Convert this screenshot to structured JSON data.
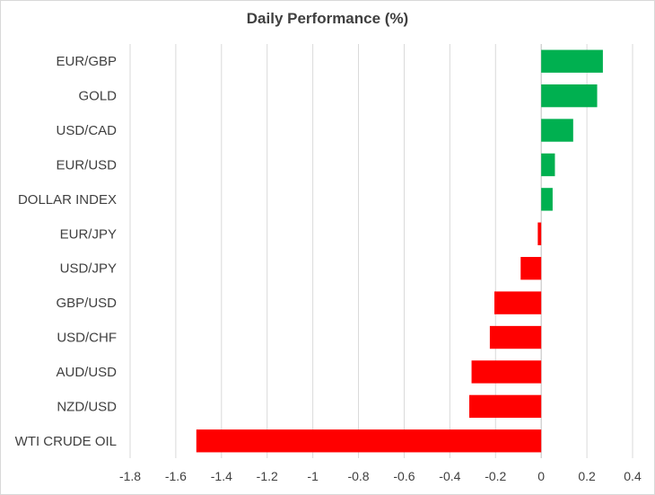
{
  "chart_data": {
    "type": "bar",
    "orientation": "horizontal",
    "title": "Daily Performance (%)",
    "xlabel": "",
    "ylabel": "",
    "xlim": [
      -1.8,
      0.4
    ],
    "xticks": [
      "-1.8",
      "-1.6",
      "-1.4",
      "-1.2",
      "-1",
      "-0.8",
      "-0.6",
      "-0.4",
      "-0.2",
      "0",
      "0.2",
      "0.4"
    ],
    "grid": true,
    "legend": "none",
    "categories": [
      "EUR/GBP",
      "GOLD",
      "USD/CAD",
      "EUR/USD",
      "DOLLAR INDEX",
      "EUR/JPY",
      "USD/JPY",
      "GBP/USD",
      "USD/CHF",
      "AUD/USD",
      "NZD/USD",
      "WTI CRUDE OIL"
    ],
    "values": [
      0.27,
      0.245,
      0.14,
      0.06,
      0.05,
      -0.015,
      -0.09,
      -0.205,
      -0.225,
      -0.305,
      -0.315,
      -1.51
    ],
    "colors": {
      "positive": "#00b050",
      "negative": "#ff0000",
      "grid": "#d9d9d9",
      "axis": "#bfbfbf"
    }
  }
}
